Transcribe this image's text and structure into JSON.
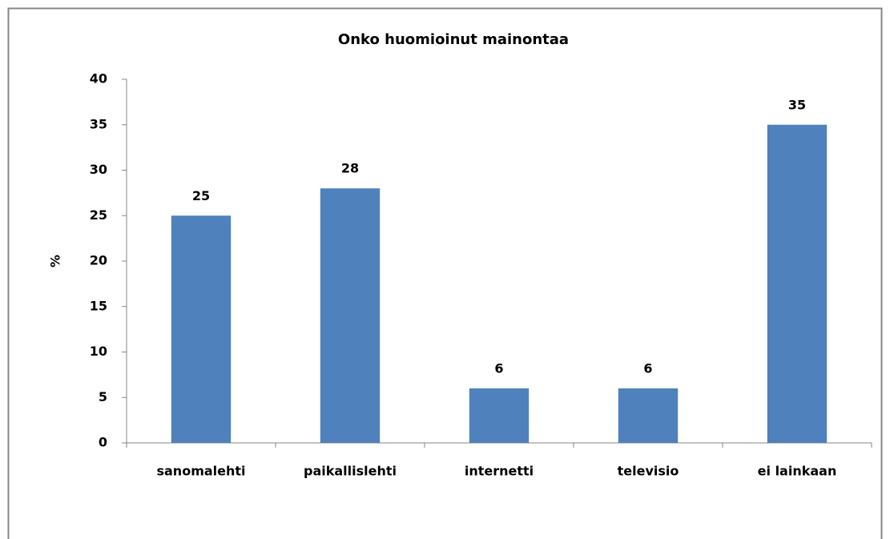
{
  "chart_data": {
    "type": "bar",
    "title": "Onko huomioinut mainontaa",
    "y_label": "%",
    "categories": [
      "sanomalehti",
      "paikallislehti",
      "internetti",
      "televisio",
      "ei lainkaan"
    ],
    "values": [
      25,
      28,
      6,
      6,
      35
    ],
    "color": "#4f81bd",
    "ylim": [
      0,
      40
    ],
    "yticks": [
      0,
      5,
      10,
      15,
      20,
      25,
      30,
      35,
      40
    ]
  }
}
